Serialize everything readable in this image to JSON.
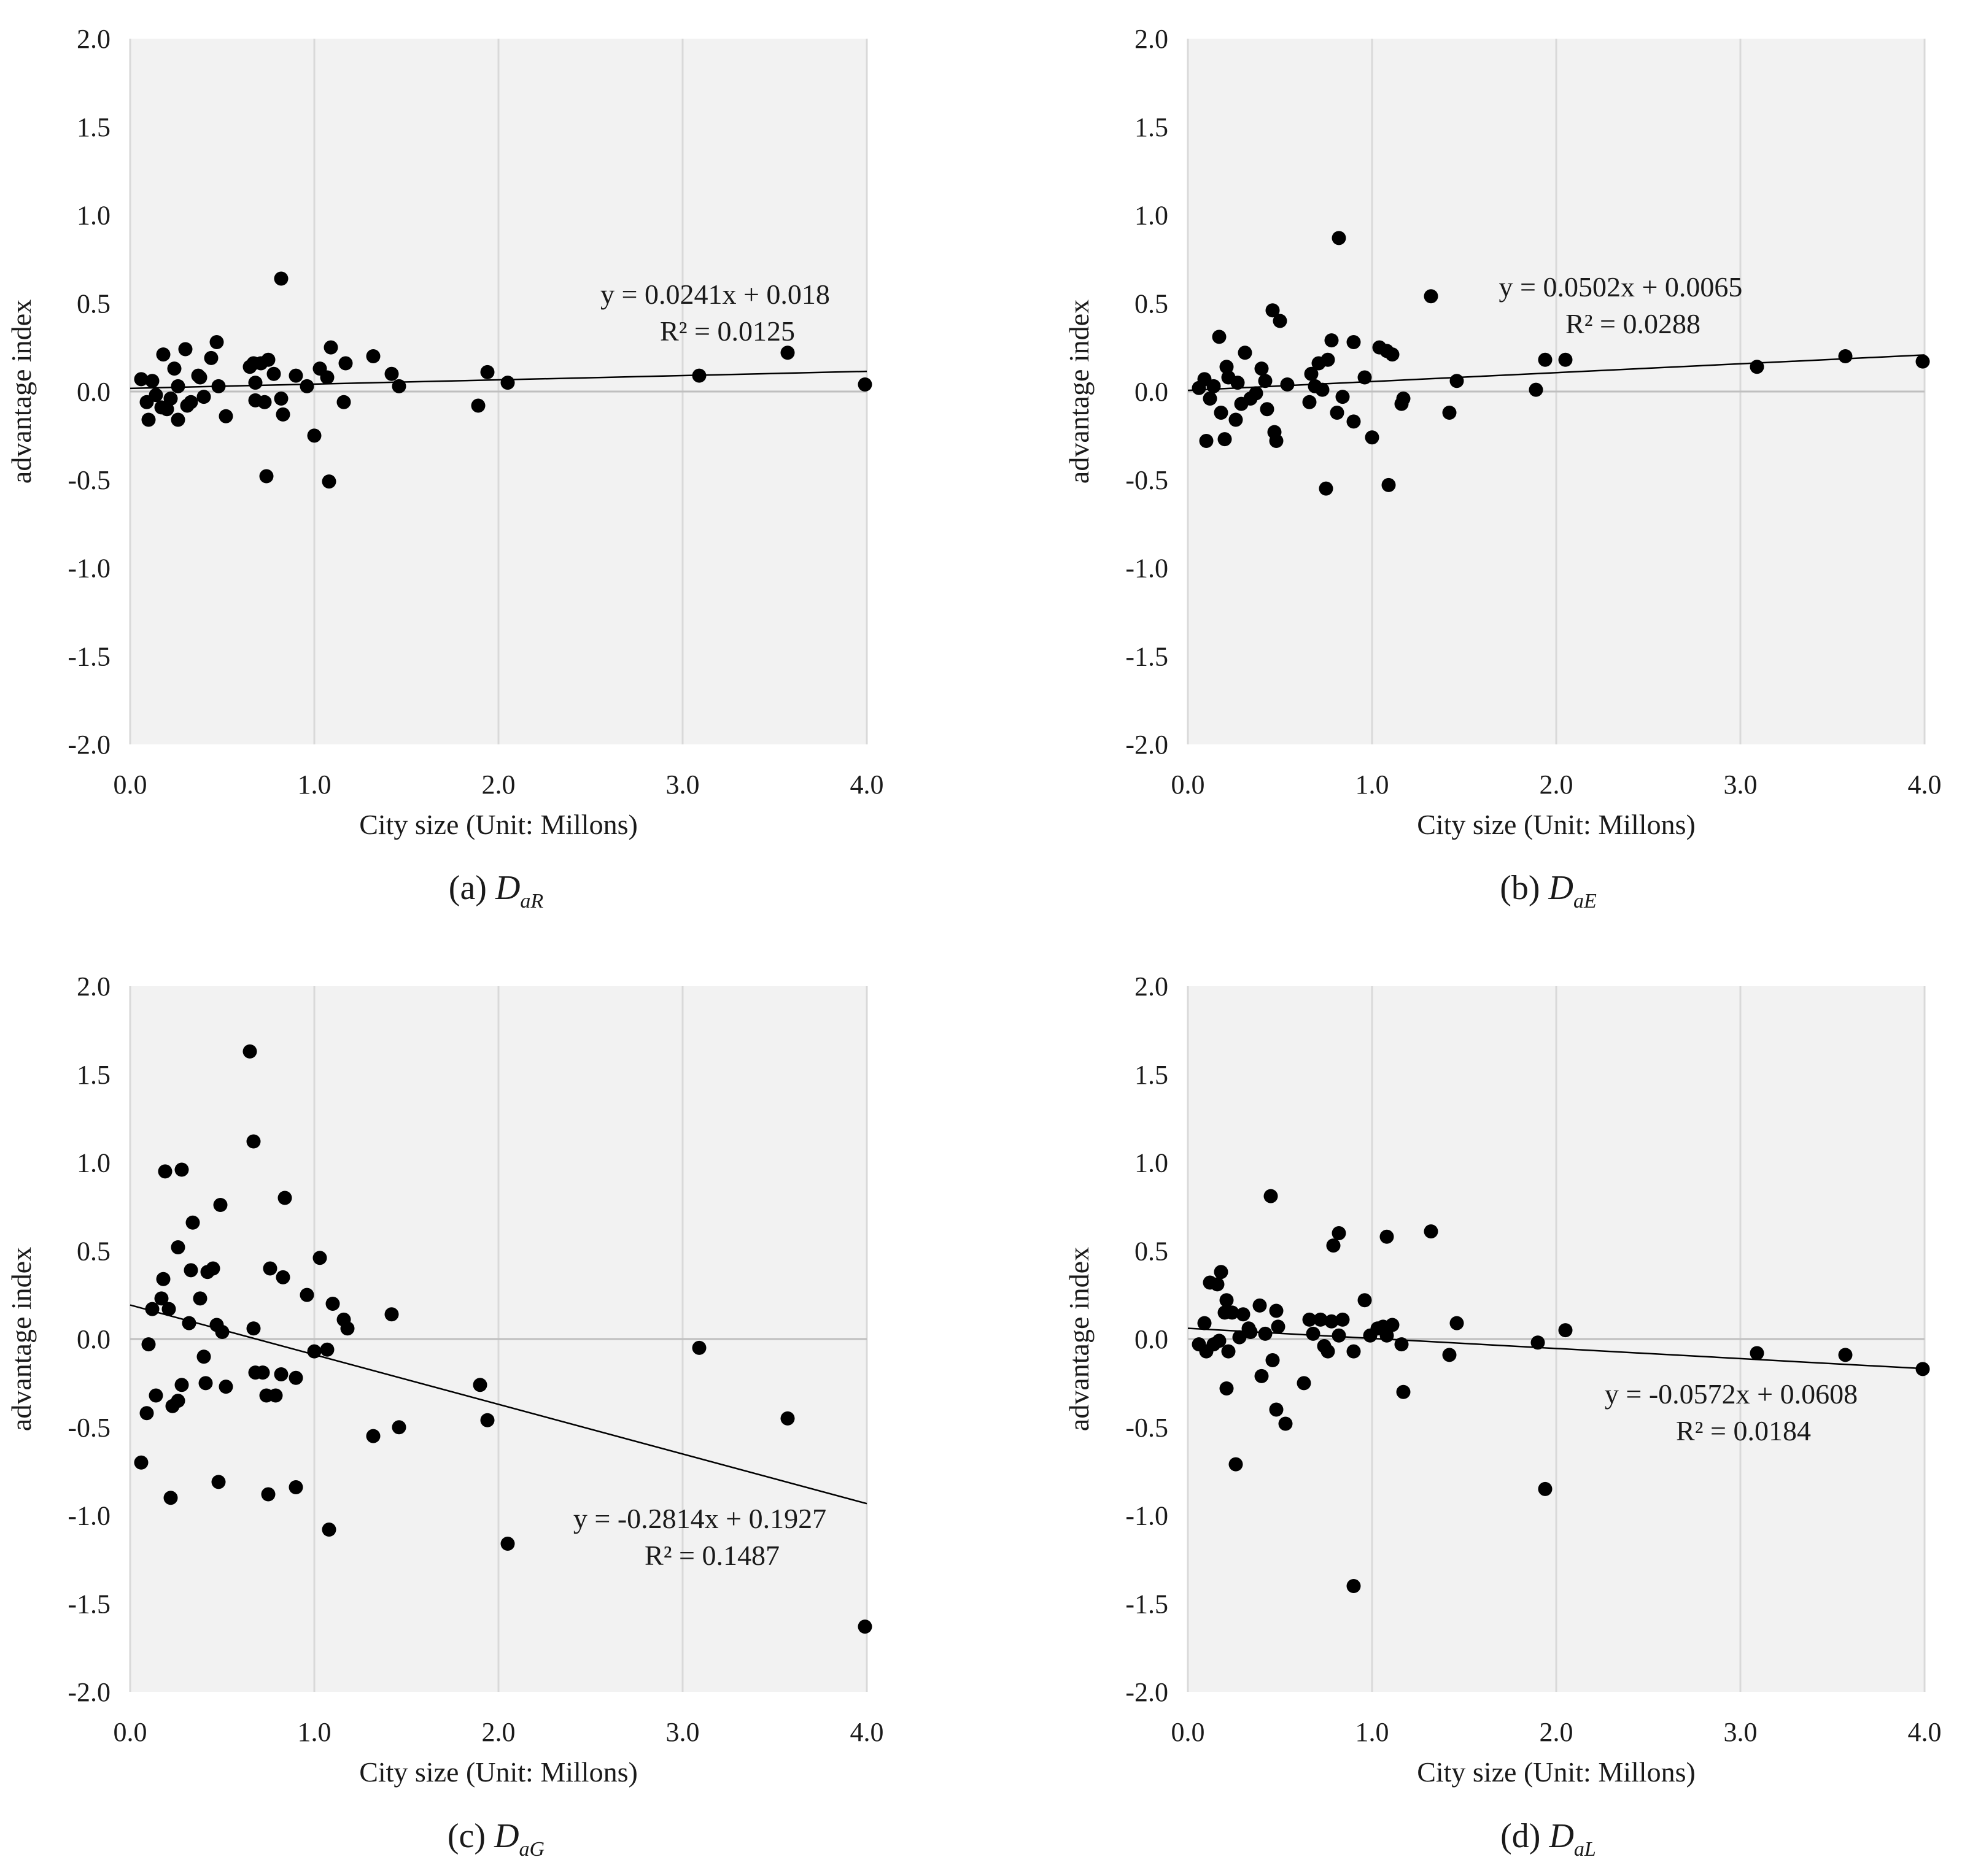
{
  "chart_data": [
    {
      "type": "scatter",
      "panel": "a",
      "caption_prefix": "(a) ",
      "caption_var": "D",
      "caption_sub": "aR",
      "xlabel": "City size (Unit: Millons)",
      "ylabel": "advantage index",
      "xlim": [
        0,
        4
      ],
      "ylim": [
        -2,
        2
      ],
      "xticks": [
        "0.0",
        "1.0",
        "2.0",
        "3.0",
        "4.0"
      ],
      "yticks": [
        "2.0",
        "1.5",
        "1.0",
        "0.5",
        "0.0",
        "-0.5",
        "-1.0",
        "-1.5",
        "-2.0"
      ],
      "grid": true,
      "trendline": {
        "slope": 0.0241,
        "intercept": 0.018,
        "equation": "y = 0.0241x + 0.018",
        "r2": "R² = 0.0125"
      },
      "points": [
        [
          0.06,
          0.07
        ],
        [
          0.09,
          -0.06
        ],
        [
          0.1,
          -0.16
        ],
        [
          0.12,
          0.06
        ],
        [
          0.14,
          -0.02
        ],
        [
          0.17,
          -0.09
        ],
        [
          0.18,
          0.21
        ],
        [
          0.2,
          -0.1
        ],
        [
          0.22,
          -0.04
        ],
        [
          0.24,
          0.13
        ],
        [
          0.26,
          -0.16
        ],
        [
          0.26,
          0.03
        ],
        [
          0.3,
          0.24
        ],
        [
          0.31,
          -0.08
        ],
        [
          0.33,
          -0.06
        ],
        [
          0.37,
          0.09
        ],
        [
          0.38,
          0.08
        ],
        [
          0.4,
          -0.03
        ],
        [
          0.44,
          0.19
        ],
        [
          0.47,
          0.28
        ],
        [
          0.48,
          0.03
        ],
        [
          0.52,
          -0.14
        ],
        [
          0.65,
          0.14
        ],
        [
          0.67,
          0.16
        ],
        [
          0.68,
          -0.05
        ],
        [
          0.68,
          0.05
        ],
        [
          0.71,
          0.16
        ],
        [
          0.73,
          -0.06
        ],
        [
          0.74,
          -0.48
        ],
        [
          0.75,
          0.18
        ],
        [
          0.78,
          0.1
        ],
        [
          0.82,
          -0.04
        ],
        [
          0.83,
          -0.13
        ],
        [
          0.82,
          0.64
        ],
        [
          0.9,
          0.09
        ],
        [
          0.96,
          0.03
        ],
        [
          1.0,
          -0.25
        ],
        [
          1.03,
          0.13
        ],
        [
          1.07,
          0.08
        ],
        [
          1.08,
          -0.51
        ],
        [
          1.09,
          0.25
        ],
        [
          1.16,
          -0.06
        ],
        [
          1.17,
          0.16
        ],
        [
          1.32,
          0.2
        ],
        [
          1.42,
          0.1
        ],
        [
          1.46,
          0.03
        ],
        [
          1.89,
          -0.08
        ],
        [
          1.94,
          0.11
        ],
        [
          2.05,
          0.05
        ],
        [
          3.09,
          0.09
        ],
        [
          3.57,
          0.22
        ],
        [
          3.99,
          0.04
        ]
      ]
    },
    {
      "type": "scatter",
      "panel": "b",
      "caption_prefix": "(b) ",
      "caption_var": "D",
      "caption_sub": "aE",
      "xlabel": "City size (Unit: Millons)",
      "ylabel": "advantage index",
      "xlim": [
        0,
        4
      ],
      "ylim": [
        -2,
        2
      ],
      "xticks": [
        "0.0",
        "1.0",
        "2.0",
        "3.0",
        "4.0"
      ],
      "yticks": [
        "2.0",
        "1.5",
        "1.0",
        "0.5",
        "0.0",
        "-0.5",
        "-1.0",
        "-1.5",
        "-2.0"
      ],
      "grid": true,
      "trendline": {
        "slope": 0.0502,
        "intercept": 0.0065,
        "equation": "y = 0.0502x + 0.0065",
        "r2": "R² = 0.0288"
      },
      "points": [
        [
          0.06,
          0.02
        ],
        [
          0.09,
          0.07
        ],
        [
          0.1,
          -0.28
        ],
        [
          0.12,
          -0.04
        ],
        [
          0.14,
          0.03
        ],
        [
          0.17,
          0.31
        ],
        [
          0.18,
          -0.12
        ],
        [
          0.2,
          -0.27
        ],
        [
          0.21,
          0.14
        ],
        [
          0.22,
          0.08
        ],
        [
          0.26,
          -0.16
        ],
        [
          0.27,
          0.05
        ],
        [
          0.29,
          -0.07
        ],
        [
          0.31,
          0.22
        ],
        [
          0.34,
          -0.04
        ],
        [
          0.37,
          -0.01
        ],
        [
          0.4,
          0.13
        ],
        [
          0.42,
          0.06
        ],
        [
          0.43,
          -0.1
        ],
        [
          0.46,
          0.46
        ],
        [
          0.47,
          -0.23
        ],
        [
          0.48,
          -0.28
        ],
        [
          0.5,
          0.4
        ],
        [
          0.54,
          0.04
        ],
        [
          0.66,
          -0.06
        ],
        [
          0.67,
          0.1
        ],
        [
          0.69,
          0.03
        ],
        [
          0.71,
          0.16
        ],
        [
          0.73,
          0.01
        ],
        [
          0.75,
          -0.55
        ],
        [
          0.76,
          0.18
        ],
        [
          0.78,
          0.29
        ],
        [
          0.81,
          -0.12
        ],
        [
          0.82,
          0.87
        ],
        [
          0.84,
          -0.03
        ],
        [
          0.9,
          0.28
        ],
        [
          0.9,
          -0.17
        ],
        [
          0.96,
          0.08
        ],
        [
          1.0,
          -0.26
        ],
        [
          1.04,
          0.25
        ],
        [
          1.08,
          0.23
        ],
        [
          1.09,
          -0.53
        ],
        [
          1.11,
          0.21
        ],
        [
          1.16,
          -0.07
        ],
        [
          1.17,
          -0.04
        ],
        [
          1.32,
          0.54
        ],
        [
          1.42,
          -0.12
        ],
        [
          1.46,
          0.06
        ],
        [
          1.89,
          0.01
        ],
        [
          1.94,
          0.18
        ],
        [
          2.05,
          0.18
        ],
        [
          3.09,
          0.14
        ],
        [
          3.57,
          0.2
        ],
        [
          3.99,
          0.17
        ]
      ]
    },
    {
      "type": "scatter",
      "panel": "c",
      "caption_prefix": "(c) ",
      "caption_var": "D",
      "caption_sub": "aG",
      "xlabel": "City size (Unit: Millons)",
      "ylabel": "advantage index",
      "xlim": [
        0,
        4
      ],
      "ylim": [
        -2,
        2
      ],
      "xticks": [
        "0.0",
        "1.0",
        "2.0",
        "3.0",
        "4.0"
      ],
      "yticks": [
        "2.0",
        "1.5",
        "1.0",
        "0.5",
        "0.0",
        "-0.5",
        "-1.0",
        "-1.5",
        "-2.0"
      ],
      "grid": true,
      "trendline": {
        "slope": -0.2814,
        "intercept": 0.1927,
        "equation": "y = -0.2814x + 0.1927",
        "r2": "R² = 0.1487"
      },
      "points": [
        [
          0.06,
          -0.7
        ],
        [
          0.09,
          -0.42
        ],
        [
          0.1,
          -0.03
        ],
        [
          0.12,
          0.17
        ],
        [
          0.14,
          -0.32
        ],
        [
          0.17,
          0.23
        ],
        [
          0.18,
          0.34
        ],
        [
          0.19,
          0.95
        ],
        [
          0.21,
          0.17
        ],
        [
          0.22,
          -0.9
        ],
        [
          0.23,
          -0.38
        ],
        [
          0.26,
          0.52
        ],
        [
          0.26,
          -0.35
        ],
        [
          0.28,
          0.96
        ],
        [
          0.28,
          -0.26
        ],
        [
          0.32,
          0.09
        ],
        [
          0.33,
          0.39
        ],
        [
          0.34,
          0.66
        ],
        [
          0.38,
          0.23
        ],
        [
          0.4,
          -0.1
        ],
        [
          0.41,
          -0.25
        ],
        [
          0.42,
          0.38
        ],
        [
          0.45,
          0.4
        ],
        [
          0.47,
          0.08
        ],
        [
          0.48,
          -0.81
        ],
        [
          0.49,
          0.76
        ],
        [
          0.5,
          0.04
        ],
        [
          0.52,
          -0.27
        ],
        [
          0.65,
          1.63
        ],
        [
          0.67,
          1.12
        ],
        [
          0.67,
          0.06
        ],
        [
          0.68,
          -0.19
        ],
        [
          0.72,
          -0.19
        ],
        [
          0.74,
          -0.32
        ],
        [
          0.75,
          -0.88
        ],
        [
          0.76,
          0.4
        ],
        [
          0.79,
          -0.32
        ],
        [
          0.82,
          -0.2
        ],
        [
          0.83,
          0.35
        ],
        [
          0.84,
          0.8
        ],
        [
          0.9,
          -0.22
        ],
        [
          0.9,
          -0.84
        ],
        [
          0.96,
          0.25
        ],
        [
          1.0,
          -0.07
        ],
        [
          1.03,
          0.46
        ],
        [
          1.07,
          -0.06
        ],
        [
          1.08,
          -1.08
        ],
        [
          1.1,
          0.2
        ],
        [
          1.16,
          0.11
        ],
        [
          1.18,
          0.06
        ],
        [
          1.32,
          -0.55
        ],
        [
          1.42,
          0.14
        ],
        [
          1.46,
          -0.5
        ],
        [
          1.9,
          -0.26
        ],
        [
          1.94,
          -0.46
        ],
        [
          2.05,
          -1.16
        ],
        [
          3.09,
          -0.05
        ],
        [
          3.57,
          -0.45
        ],
        [
          3.99,
          -1.63
        ]
      ]
    },
    {
      "type": "scatter",
      "panel": "d",
      "caption_prefix": "(d) ",
      "caption_var": "D",
      "caption_sub": "aL",
      "xlabel": "City size (Unit: Millons)",
      "ylabel": "advantage index",
      "xlim": [
        0,
        4
      ],
      "ylim": [
        -2,
        2
      ],
      "xticks": [
        "0.0",
        "1.0",
        "2.0",
        "3.0",
        "4.0"
      ],
      "yticks": [
        "2.0",
        "1.5",
        "1.0",
        "0.5",
        "0.0",
        "-0.5",
        "-1.0",
        "-1.5",
        "-2.0"
      ],
      "grid": true,
      "trendline": {
        "slope": -0.0572,
        "intercept": 0.0608,
        "equation": "y = -0.0572x + 0.0608",
        "r2": "R² = 0.0184"
      },
      "points": [
        [
          0.06,
          -0.03
        ],
        [
          0.09,
          0.09
        ],
        [
          0.1,
          -0.07
        ],
        [
          0.12,
          0.32
        ],
        [
          0.14,
          -0.03
        ],
        [
          0.16,
          0.31
        ],
        [
          0.17,
          -0.01
        ],
        [
          0.18,
          0.38
        ],
        [
          0.2,
          0.15
        ],
        [
          0.21,
          0.22
        ],
        [
          0.21,
          -0.28
        ],
        [
          0.22,
          -0.07
        ],
        [
          0.24,
          0.15
        ],
        [
          0.26,
          -0.71
        ],
        [
          0.28,
          0.01
        ],
        [
          0.3,
          0.14
        ],
        [
          0.33,
          0.06
        ],
        [
          0.34,
          0.04
        ],
        [
          0.39,
          0.19
        ],
        [
          0.4,
          -0.21
        ],
        [
          0.42,
          0.03
        ],
        [
          0.45,
          0.81
        ],
        [
          0.46,
          -0.12
        ],
        [
          0.48,
          -0.4
        ],
        [
          0.48,
          0.16
        ],
        [
          0.49,
          0.07
        ],
        [
          0.53,
          -0.48
        ],
        [
          0.63,
          -0.25
        ],
        [
          0.66,
          0.11
        ],
        [
          0.68,
          0.03
        ],
        [
          0.72,
          0.11
        ],
        [
          0.74,
          -0.04
        ],
        [
          0.76,
          -0.07
        ],
        [
          0.78,
          0.1
        ],
        [
          0.79,
          0.53
        ],
        [
          0.82,
          0.6
        ],
        [
          0.82,
          0.02
        ],
        [
          0.84,
          0.11
        ],
        [
          0.9,
          -0.07
        ],
        [
          0.9,
          -1.4
        ],
        [
          0.96,
          0.22
        ],
        [
          0.99,
          0.02
        ],
        [
          1.03,
          0.06
        ],
        [
          1.06,
          0.07
        ],
        [
          1.08,
          0.02
        ],
        [
          1.08,
          0.58
        ],
        [
          1.11,
          0.08
        ],
        [
          1.16,
          -0.03
        ],
        [
          1.17,
          -0.3
        ],
        [
          1.32,
          0.61
        ],
        [
          1.42,
          -0.09
        ],
        [
          1.46,
          0.09
        ],
        [
          1.9,
          -0.02
        ],
        [
          1.94,
          -0.85
        ],
        [
          2.05,
          0.05
        ],
        [
          3.09,
          -0.08
        ],
        [
          3.57,
          -0.09
        ],
        [
          3.99,
          -0.17
        ]
      ]
    }
  ],
  "colors": {
    "plot_background": "#f2f2f2",
    "gridline": "#d9d9d9",
    "marker": "#000000",
    "trendline": "#000000",
    "text": "#1a1a1a"
  }
}
